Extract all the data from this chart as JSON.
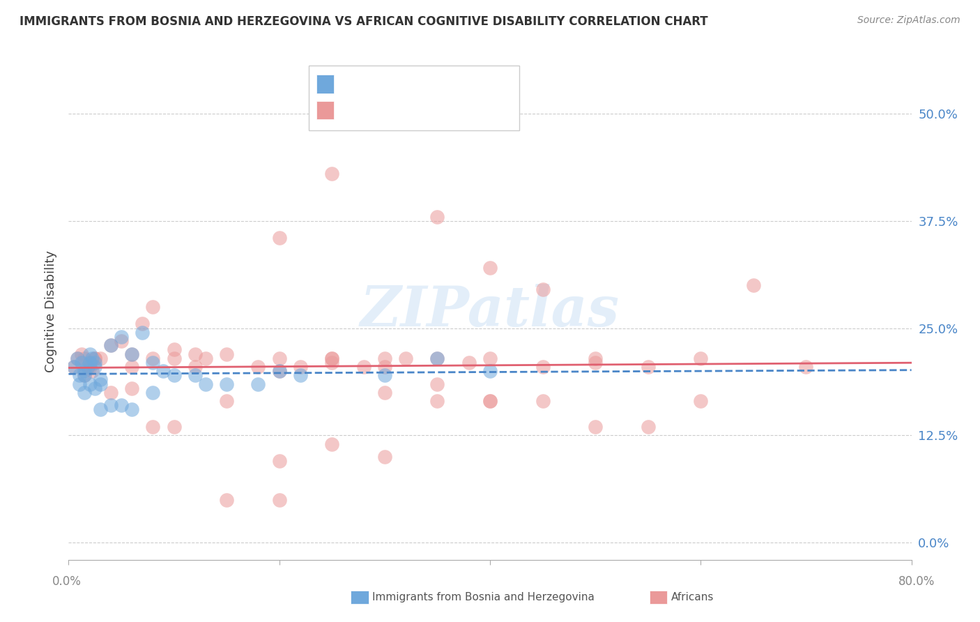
{
  "title": "IMMIGRANTS FROM BOSNIA AND HERZEGOVINA VS AFRICAN COGNITIVE DISABILITY CORRELATION CHART",
  "source": "Source: ZipAtlas.com",
  "ylabel": "Cognitive Disability",
  "ytick_labels": [
    "0.0%",
    "12.5%",
    "25.0%",
    "37.5%",
    "50.0%"
  ],
  "ytick_values": [
    0.0,
    0.125,
    0.25,
    0.375,
    0.5
  ],
  "xlim": [
    0.0,
    0.8
  ],
  "ylim": [
    -0.02,
    0.56
  ],
  "blue_color": "#6fa8dc",
  "pink_color": "#ea9999",
  "blue_line_color": "#4a86c8",
  "pink_line_color": "#e06070",
  "watermark": "ZIPatlas",
  "blue_scatter_x": [
    0.005,
    0.008,
    0.01,
    0.012,
    0.015,
    0.018,
    0.02,
    0.022,
    0.025,
    0.01,
    0.015,
    0.02,
    0.025,
    0.03,
    0.025,
    0.02,
    0.015,
    0.04,
    0.05,
    0.06,
    0.03,
    0.07,
    0.08,
    0.09,
    0.1,
    0.12,
    0.13,
    0.15,
    0.18,
    0.2,
    0.22,
    0.35,
    0.4,
    0.05,
    0.03,
    0.04,
    0.06,
    0.08,
    0.3
  ],
  "blue_scatter_y": [
    0.205,
    0.215,
    0.195,
    0.21,
    0.2,
    0.205,
    0.21,
    0.215,
    0.205,
    0.185,
    0.175,
    0.185,
    0.18,
    0.19,
    0.21,
    0.22,
    0.195,
    0.23,
    0.24,
    0.22,
    0.185,
    0.245,
    0.21,
    0.2,
    0.195,
    0.195,
    0.185,
    0.185,
    0.185,
    0.2,
    0.195,
    0.215,
    0.2,
    0.16,
    0.155,
    0.16,
    0.155,
    0.175,
    0.195
  ],
  "pink_scatter_x": [
    0.005,
    0.008,
    0.012,
    0.015,
    0.018,
    0.02,
    0.022,
    0.025,
    0.015,
    0.02,
    0.025,
    0.03,
    0.04,
    0.05,
    0.06,
    0.07,
    0.08,
    0.1,
    0.12,
    0.13,
    0.15,
    0.18,
    0.2,
    0.22,
    0.25,
    0.28,
    0.3,
    0.32,
    0.35,
    0.38,
    0.4,
    0.45,
    0.5,
    0.55,
    0.6,
    0.65,
    0.7,
    0.3,
    0.25,
    0.2,
    0.15,
    0.1,
    0.08,
    0.06,
    0.04,
    0.35,
    0.4,
    0.45,
    0.5,
    0.55,
    0.6,
    0.35,
    0.4,
    0.25,
    0.3,
    0.2,
    0.15,
    0.45,
    0.5,
    0.35,
    0.4,
    0.2,
    0.25,
    0.3,
    0.1,
    0.12,
    0.08,
    0.06,
    0.2,
    0.25
  ],
  "pink_scatter_y": [
    0.205,
    0.215,
    0.22,
    0.195,
    0.205,
    0.21,
    0.2,
    0.215,
    0.215,
    0.205,
    0.215,
    0.215,
    0.23,
    0.235,
    0.22,
    0.255,
    0.275,
    0.225,
    0.22,
    0.215,
    0.22,
    0.205,
    0.215,
    0.205,
    0.215,
    0.205,
    0.205,
    0.215,
    0.215,
    0.21,
    0.215,
    0.205,
    0.215,
    0.205,
    0.215,
    0.3,
    0.205,
    0.175,
    0.215,
    0.2,
    0.165,
    0.135,
    0.135,
    0.18,
    0.175,
    0.165,
    0.165,
    0.165,
    0.135,
    0.135,
    0.165,
    0.38,
    0.32,
    0.43,
    0.1,
    0.05,
    0.05,
    0.295,
    0.21,
    0.185,
    0.165,
    0.355,
    0.21,
    0.215,
    0.215,
    0.205,
    0.215,
    0.205,
    0.095,
    0.115
  ]
}
